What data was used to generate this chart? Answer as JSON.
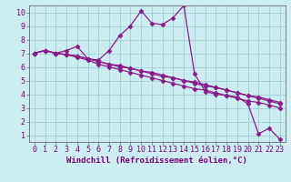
{
  "xlabel": "Windchill (Refroidissement éolien,°C)",
  "bg_color": "#cceef2",
  "line_color": "#8b1a8b",
  "grid_color": "#a0d0d8",
  "spine_color": "#7a7a7a",
  "text_color": "#7b007b",
  "xlim": [
    -0.5,
    23.5
  ],
  "ylim": [
    0.5,
    10.5
  ],
  "xticks": [
    0,
    1,
    2,
    3,
    4,
    5,
    6,
    7,
    8,
    9,
    10,
    11,
    12,
    13,
    14,
    15,
    16,
    17,
    18,
    19,
    20,
    21,
    22,
    23
  ],
  "yticks": [
    1,
    2,
    3,
    4,
    5,
    6,
    7,
    8,
    9,
    10
  ],
  "lines": [
    [
      7.0,
      7.2,
      7.0,
      7.2,
      7.5,
      6.6,
      6.5,
      7.2,
      8.3,
      9.0,
      10.1,
      9.2,
      9.1,
      9.6,
      10.5,
      5.5,
      4.2,
      4.0,
      3.9,
      3.8,
      3.3,
      1.1,
      1.5,
      0.7
    ],
    [
      7.0,
      7.2,
      7.0,
      6.9,
      6.7,
      6.5,
      6.2,
      6.0,
      5.8,
      5.6,
      5.4,
      5.2,
      5.0,
      4.8,
      4.6,
      4.4,
      4.3,
      4.1,
      3.9,
      3.7,
      3.5,
      3.4,
      3.2,
      3.0
    ],
    [
      7.0,
      7.2,
      7.0,
      6.9,
      6.8,
      6.6,
      6.4,
      6.2,
      6.0,
      5.9,
      5.7,
      5.5,
      5.3,
      5.2,
      5.0,
      4.9,
      4.7,
      4.5,
      4.3,
      4.1,
      3.9,
      3.7,
      3.5,
      3.3
    ],
    [
      7.0,
      7.2,
      7.0,
      6.9,
      6.8,
      6.6,
      6.4,
      6.2,
      6.1,
      5.9,
      5.7,
      5.6,
      5.4,
      5.2,
      5.0,
      4.8,
      4.6,
      4.5,
      4.3,
      4.1,
      3.9,
      3.8,
      3.6,
      3.4
    ]
  ],
  "xlabel_fontsize": 6.5,
  "tick_fontsize": 6.0,
  "marker": "D",
  "markersize": 2.5,
  "linewidth": 0.9
}
